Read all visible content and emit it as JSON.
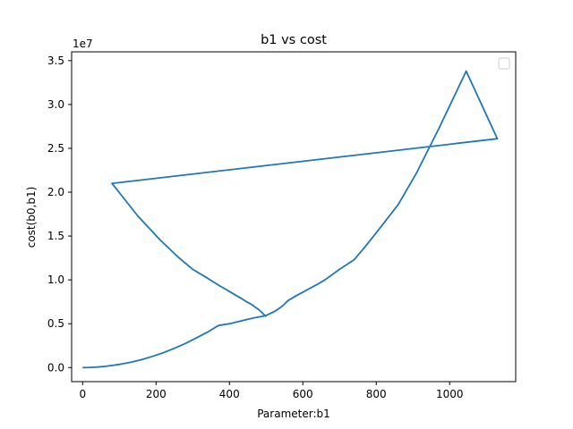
{
  "chart_data": {
    "type": "line",
    "title": "b1 vs cost",
    "xlabel": "Parameter:b1",
    "ylabel": "cost(b0,b1)",
    "y_offset_label": "1e7",
    "xlim": [
      -30,
      1180
    ],
    "ylim": [
      -1.6,
      36.0
    ],
    "y_scale_note": "y values in units of 1e7",
    "xticks": [
      0,
      200,
      400,
      600,
      800,
      1000
    ],
    "xtick_labels": [
      "0",
      "200",
      "400",
      "600",
      "800",
      "1000"
    ],
    "yticks": [
      0.0,
      5.0,
      10.0,
      15.0,
      20.0,
      25.0,
      30.0,
      35.0
    ],
    "ytick_labels": [
      "0.0",
      "0.5",
      "1.0",
      "1.5",
      "2.0",
      "2.5",
      "3.0",
      "3.5"
    ],
    "grid": false,
    "legend": {
      "position": "top-right",
      "entries": [
        ""
      ]
    },
    "line_color": "#1f77b4",
    "series": [
      {
        "values_x": [
          0,
          20,
          40,
          60,
          80,
          100,
          130,
          160,
          190,
          220,
          250,
          280,
          310,
          340,
          370,
          400,
          430,
          450,
          470,
          490,
          500,
          505,
          510,
          515,
          520,
          525,
          530,
          535,
          540,
          545,
          550,
          555,
          560,
          570,
          580,
          600,
          620,
          640,
          660,
          680,
          700,
          740,
          770,
          810,
          860,
          910,
          970,
          1045,
          1130,
          80,
          150,
          210,
          260,
          300,
          340,
          370,
          395,
          415,
          432,
          447,
          460,
          470,
          480,
          488,
          495,
          500
        ],
        "values_y": [
          0.0,
          0.02,
          0.06,
          0.13,
          0.24,
          0.37,
          0.6,
          0.9,
          1.27,
          1.7,
          2.2,
          2.75,
          3.38,
          4.05,
          4.8,
          5.0,
          5.3,
          5.5,
          5.7,
          5.85,
          5.95,
          6.05,
          6.15,
          6.25,
          6.35,
          6.45,
          6.6,
          6.75,
          6.9,
          7.05,
          7.25,
          7.45,
          7.65,
          7.9,
          8.15,
          8.6,
          9.05,
          9.5,
          10.0,
          10.6,
          11.2,
          12.3,
          13.8,
          15.9,
          18.6,
          22.2,
          27.2,
          33.8,
          26.1,
          21.0,
          17.3,
          14.6,
          12.6,
          11.2,
          10.2,
          9.4,
          8.8,
          8.3,
          7.9,
          7.5,
          7.2,
          6.9,
          6.6,
          6.3,
          6.0,
          5.8
        ]
      }
    ]
  }
}
